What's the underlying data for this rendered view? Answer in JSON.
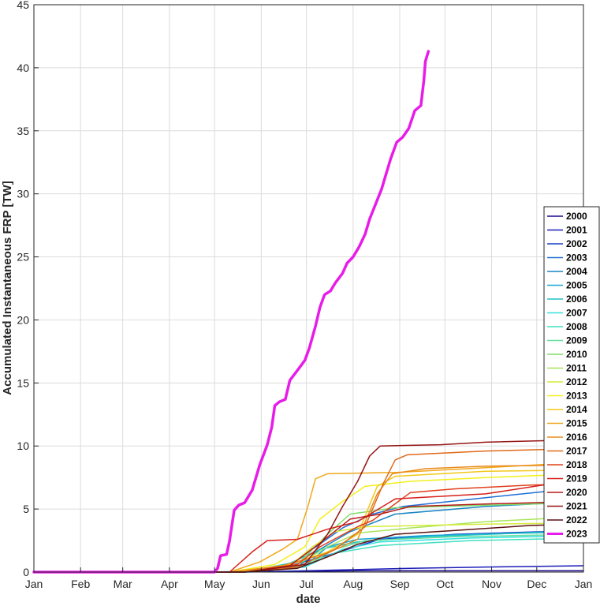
{
  "chart_data": {
    "type": "line",
    "title": "",
    "xlabel": "date",
    "ylabel": "Accumulated Instantaneous FRP [TW]",
    "x_ticks": [
      "Jan",
      "Feb",
      "Mar",
      "Apr",
      "May",
      "Jun",
      "Jul",
      "Aug",
      "Sep",
      "Oct",
      "Nov",
      "Dec",
      "Jan"
    ],
    "x_tick_days": [
      0,
      31,
      59,
      90,
      120,
      151,
      181,
      212,
      243,
      273,
      304,
      334,
      365
    ],
    "xlim": [
      0,
      365
    ],
    "ylim": [
      0,
      45
    ],
    "y_ticks": [
      0,
      5,
      10,
      15,
      20,
      25,
      30,
      35,
      40,
      45
    ],
    "grid": true,
    "legend_position": "right",
    "series": [
      {
        "name": "2000",
        "color": "#1a0a8c",
        "width": 1.5,
        "points": [
          [
            0,
            0
          ],
          [
            100,
            0
          ],
          [
            160,
            0.05
          ],
          [
            220,
            0.1
          ],
          [
            365,
            0.1
          ]
        ]
      },
      {
        "name": "2001",
        "color": "#1b1db8",
        "width": 1.5,
        "points": [
          [
            0,
            0
          ],
          [
            140,
            0
          ],
          [
            180,
            0.1
          ],
          [
            250,
            0.3
          ],
          [
            300,
            0.4
          ],
          [
            365,
            0.5
          ]
        ]
      },
      {
        "name": "2002",
        "color": "#1a3fc9",
        "width": 1.5,
        "points": [
          [
            0,
            0
          ],
          [
            135,
            0
          ],
          [
            170,
            0.5
          ],
          [
            200,
            1.5
          ],
          [
            230,
            2.6
          ],
          [
            280,
            3.0
          ],
          [
            365,
            3.3
          ]
        ]
      },
      {
        "name": "2003",
        "color": "#1f6fd6",
        "width": 1.5,
        "points": [
          [
            0,
            0
          ],
          [
            135,
            0
          ],
          [
            175,
            0.6
          ],
          [
            185,
            1.8
          ],
          [
            205,
            3.5
          ],
          [
            225,
            4.6
          ],
          [
            245,
            5.2
          ],
          [
            300,
            5.9
          ],
          [
            365,
            6.7
          ]
        ]
      },
      {
        "name": "2004",
        "color": "#1a86c4",
        "width": 1.5,
        "points": [
          [
            0,
            0
          ],
          [
            140,
            0
          ],
          [
            175,
            0.4
          ],
          [
            190,
            1.8
          ],
          [
            210,
            3.2
          ],
          [
            240,
            4.6
          ],
          [
            300,
            5.2
          ],
          [
            365,
            5.6
          ]
        ]
      },
      {
        "name": "2005",
        "color": "#1aa6d6",
        "width": 1.5,
        "points": [
          [
            0,
            0
          ],
          [
            140,
            0
          ],
          [
            180,
            0.5
          ],
          [
            195,
            2.0
          ],
          [
            215,
            2.6
          ],
          [
            260,
            2.9
          ],
          [
            365,
            3.2
          ]
        ]
      },
      {
        "name": "2006",
        "color": "#1fc4c4",
        "width": 1.5,
        "points": [
          [
            0,
            0
          ],
          [
            140,
            0
          ],
          [
            170,
            0.7
          ],
          [
            190,
            1.8
          ],
          [
            215,
            2.4
          ],
          [
            260,
            2.8
          ],
          [
            365,
            3.3
          ]
        ]
      },
      {
        "name": "2007",
        "color": "#33e0e0",
        "width": 1.5,
        "points": [
          [
            0,
            0
          ],
          [
            140,
            0
          ],
          [
            180,
            0.4
          ],
          [
            205,
            1.8
          ],
          [
            230,
            2.4
          ],
          [
            290,
            2.7
          ],
          [
            365,
            2.9
          ]
        ]
      },
      {
        "name": "2008",
        "color": "#40e0c0",
        "width": 1.5,
        "points": [
          [
            0,
            0
          ],
          [
            140,
            0
          ],
          [
            175,
            0.3
          ],
          [
            200,
            1.5
          ],
          [
            230,
            2.1
          ],
          [
            290,
            2.5
          ],
          [
            365,
            2.7
          ]
        ]
      },
      {
        "name": "2009",
        "color": "#66e0a0",
        "width": 1.5,
        "points": [
          [
            0,
            0
          ],
          [
            140,
            0
          ],
          [
            180,
            0.5
          ],
          [
            200,
            1.8
          ],
          [
            220,
            2.5
          ],
          [
            280,
            2.8
          ],
          [
            365,
            3.0
          ]
        ]
      },
      {
        "name": "2010",
        "color": "#7ede6a",
        "width": 1.5,
        "points": [
          [
            0,
            0
          ],
          [
            140,
            0
          ],
          [
            175,
            0.6
          ],
          [
            195,
            3.0
          ],
          [
            210,
            4.6
          ],
          [
            240,
            5.1
          ],
          [
            300,
            5.3
          ],
          [
            365,
            5.5
          ]
        ]
      },
      {
        "name": "2011",
        "color": "#a9e55a",
        "width": 1.5,
        "points": [
          [
            0,
            0
          ],
          [
            140,
            0
          ],
          [
            175,
            0.6
          ],
          [
            195,
            2.0
          ],
          [
            215,
            3.1
          ],
          [
            250,
            3.5
          ],
          [
            300,
            4.0
          ],
          [
            365,
            4.4
          ]
        ]
      },
      {
        "name": "2012",
        "color": "#d4ec3a",
        "width": 1.5,
        "points": [
          [
            0,
            0
          ],
          [
            140,
            0
          ],
          [
            170,
            0.5
          ],
          [
            185,
            2.0
          ],
          [
            200,
            3.2
          ],
          [
            220,
            3.6
          ],
          [
            300,
            3.8
          ],
          [
            365,
            3.9
          ]
        ]
      },
      {
        "name": "2013",
        "color": "#f2f01a",
        "width": 1.5,
        "points": [
          [
            0,
            0
          ],
          [
            130,
            0
          ],
          [
            160,
            0.6
          ],
          [
            180,
            2.0
          ],
          [
            190,
            4.2
          ],
          [
            205,
            5.6
          ],
          [
            220,
            6.8
          ],
          [
            250,
            7.2
          ],
          [
            300,
            7.5
          ],
          [
            365,
            7.8
          ]
        ]
      },
      {
        "name": "2014",
        "color": "#f2c81a",
        "width": 1.5,
        "points": [
          [
            0,
            0
          ],
          [
            135,
            0
          ],
          [
            170,
            0.6
          ],
          [
            195,
            1.6
          ],
          [
            215,
            3.0
          ],
          [
            228,
            6.8
          ],
          [
            240,
            7.6
          ],
          [
            300,
            8.0
          ],
          [
            365,
            8.1
          ]
        ]
      },
      {
        "name": "2015",
        "color": "#f0a81a",
        "width": 1.5,
        "points": [
          [
            0,
            0
          ],
          [
            130,
            0
          ],
          [
            150,
            0.8
          ],
          [
            165,
            1.8
          ],
          [
            175,
            2.6
          ],
          [
            182,
            5.2
          ],
          [
            187,
            7.4
          ],
          [
            195,
            7.8
          ],
          [
            240,
            7.9
          ],
          [
            365,
            8.7
          ]
        ]
      },
      {
        "name": "2016",
        "color": "#e88a1a",
        "width": 1.5,
        "points": [
          [
            0,
            0
          ],
          [
            130,
            0
          ],
          [
            165,
            0.5
          ],
          [
            195,
            1.5
          ],
          [
            215,
            2.6
          ],
          [
            228,
            6.2
          ],
          [
            238,
            7.8
          ],
          [
            260,
            8.2
          ],
          [
            300,
            8.4
          ],
          [
            365,
            8.5
          ]
        ]
      },
      {
        "name": "2017",
        "color": "#e06a1a",
        "width": 1.5,
        "points": [
          [
            0,
            0
          ],
          [
            140,
            0
          ],
          [
            175,
            0.4
          ],
          [
            200,
            1.8
          ],
          [
            220,
            3.6
          ],
          [
            232,
            7.0
          ],
          [
            240,
            8.9
          ],
          [
            248,
            9.3
          ],
          [
            300,
            9.6
          ],
          [
            365,
            9.8
          ]
        ]
      },
      {
        "name": "2018",
        "color": "#e0401a",
        "width": 1.5,
        "points": [
          [
            0,
            0
          ],
          [
            140,
            0
          ],
          [
            175,
            0.6
          ],
          [
            190,
            2.0
          ],
          [
            215,
            3.6
          ],
          [
            225,
            4.1
          ],
          [
            250,
            6.3
          ],
          [
            280,
            6.6
          ],
          [
            330,
            6.9
          ],
          [
            365,
            7.0
          ]
        ]
      },
      {
        "name": "2019",
        "color": "#d6201a",
        "width": 1.5,
        "points": [
          [
            0,
            0
          ],
          [
            130,
            0
          ],
          [
            145,
            1.6
          ],
          [
            155,
            2.5
          ],
          [
            175,
            2.6
          ],
          [
            195,
            3.4
          ],
          [
            215,
            4.0
          ],
          [
            240,
            5.8
          ],
          [
            300,
            6.2
          ],
          [
            365,
            7.4
          ]
        ]
      },
      {
        "name": "2020",
        "color": "#b81a1a",
        "width": 1.5,
        "points": [
          [
            0,
            0
          ],
          [
            140,
            0
          ],
          [
            170,
            0.5
          ],
          [
            190,
            2.3
          ],
          [
            210,
            4.2
          ],
          [
            230,
            4.6
          ],
          [
            250,
            5.2
          ],
          [
            300,
            5.4
          ],
          [
            365,
            5.6
          ]
        ]
      },
      {
        "name": "2021",
        "color": "#961414",
        "width": 1.5,
        "points": [
          [
            0,
            0
          ],
          [
            140,
            0
          ],
          [
            180,
            0.6
          ],
          [
            195,
            3.0
          ],
          [
            205,
            5.2
          ],
          [
            215,
            7.2
          ],
          [
            223,
            9.2
          ],
          [
            230,
            10.0
          ],
          [
            270,
            10.1
          ],
          [
            300,
            10.3
          ],
          [
            365,
            10.5
          ]
        ]
      },
      {
        "name": "2022",
        "color": "#5c1010",
        "width": 1.5,
        "points": [
          [
            0,
            0
          ],
          [
            140,
            0
          ],
          [
            175,
            0.3
          ],
          [
            195,
            1.2
          ],
          [
            215,
            2.2
          ],
          [
            240,
            3.0
          ],
          [
            280,
            3.3
          ],
          [
            330,
            3.7
          ],
          [
            365,
            3.8
          ]
        ]
      },
      {
        "name": "2023",
        "color": "#e81ce8",
        "width": 3.5,
        "points": [
          [
            0,
            0
          ],
          [
            35,
            0
          ],
          [
            120,
            0
          ],
          [
            122,
            0.3
          ],
          [
            124,
            1.3
          ],
          [
            128,
            1.4
          ],
          [
            130,
            2.5
          ],
          [
            133,
            4.9
          ],
          [
            136,
            5.3
          ],
          [
            140,
            5.5
          ],
          [
            145,
            6.5
          ],
          [
            150,
            8.5
          ],
          [
            155,
            10.1
          ],
          [
            158,
            11.5
          ],
          [
            160,
            13.2
          ],
          [
            163,
            13.5
          ],
          [
            167,
            13.7
          ],
          [
            170,
            15.2
          ],
          [
            175,
            16.0
          ],
          [
            180,
            16.8
          ],
          [
            183,
            17.8
          ],
          [
            187,
            19.5
          ],
          [
            190,
            21.0
          ],
          [
            193,
            22.0
          ],
          [
            197,
            22.3
          ],
          [
            200,
            22.9
          ],
          [
            205,
            23.7
          ],
          [
            208,
            24.5
          ],
          [
            212,
            25.0
          ],
          [
            216,
            25.8
          ],
          [
            220,
            26.8
          ],
          [
            223,
            28.0
          ],
          [
            227,
            29.2
          ],
          [
            231,
            30.4
          ],
          [
            234,
            31.6
          ],
          [
            237,
            32.8
          ],
          [
            241,
            34.1
          ],
          [
            245,
            34.5
          ],
          [
            249,
            35.2
          ],
          [
            253,
            36.6
          ],
          [
            257,
            37.0
          ],
          [
            259,
            39.0
          ],
          [
            260,
            40.5
          ],
          [
            262,
            41.3
          ]
        ]
      }
    ]
  }
}
